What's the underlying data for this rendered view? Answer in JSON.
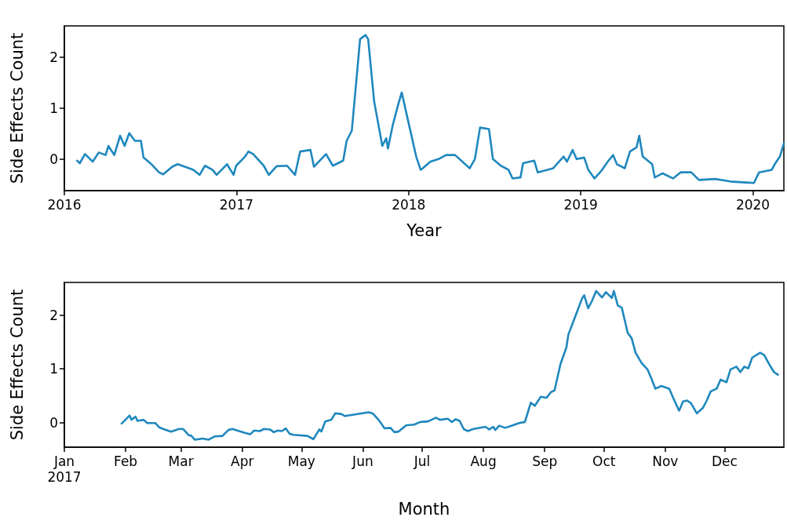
{
  "chart_data": [
    {
      "type": "line",
      "xlabel": "Year",
      "ylabel": "Side Effects Count",
      "color": "#1f88be",
      "marker": "none",
      "line_style": "solid",
      "grid": false,
      "xlim": [
        2016,
        2020.18
      ],
      "xticks": [
        2016,
        2017,
        2018,
        2019,
        2020
      ],
      "ylim": [
        -0.62,
        2.62
      ],
      "yticks": [
        0,
        1,
        2
      ],
      "x": [
        2016.074,
        2016.09,
        2016.12,
        2016.165,
        2016.2,
        2016.24,
        2016.256,
        2016.29,
        2016.324,
        2016.35,
        2016.377,
        2016.41,
        2016.445,
        2016.46,
        2016.506,
        2016.55,
        2016.574,
        2016.627,
        2016.658,
        2016.7,
        2016.75,
        2016.786,
        2016.817,
        2016.86,
        2016.885,
        2016.945,
        2016.983,
        2016.998,
        2017.05,
        2017.07,
        2017.097,
        2017.158,
        2017.188,
        2017.233,
        2017.294,
        2017.34,
        2017.37,
        2017.43,
        2017.45,
        2017.52,
        2017.56,
        2017.62,
        2017.64,
        2017.67,
        2017.695,
        2017.718,
        2017.75,
        2017.765,
        2017.8,
        2017.825,
        2017.847,
        2017.87,
        2017.88,
        2017.908,
        2017.94,
        2017.96,
        2018.006,
        2018.044,
        2018.07,
        2018.082,
        2018.127,
        2018.173,
        2018.218,
        2018.27,
        2018.355,
        2018.385,
        2018.415,
        2018.467,
        2018.49,
        2018.536,
        2018.58,
        2018.604,
        2018.65,
        2018.665,
        2018.73,
        2018.75,
        2018.84,
        2018.9,
        2018.92,
        2018.953,
        2018.976,
        2019.02,
        2019.044,
        2019.08,
        2019.12,
        2019.157,
        2019.188,
        2019.21,
        2019.256,
        2019.286,
        2019.324,
        2019.34,
        2019.36,
        2019.415,
        2019.43,
        2019.476,
        2019.536,
        2019.58,
        2019.642,
        2019.687,
        2019.78,
        2019.87,
        2019.96,
        2020.006,
        2020.036,
        2020.11,
        2020.127,
        2020.157,
        2020.18
      ],
      "values": [
        -0.03,
        -0.08,
        0.1,
        -0.05,
        0.13,
        0.08,
        0.26,
        0.08,
        0.46,
        0.26,
        0.51,
        0.36,
        0.36,
        0.03,
        -0.1,
        -0.26,
        -0.3,
        -0.15,
        -0.1,
        -0.15,
        -0.21,
        -0.31,
        -0.13,
        -0.21,
        -0.31,
        -0.1,
        -0.31,
        -0.13,
        0.05,
        0.15,
        0.1,
        -0.13,
        -0.31,
        -0.14,
        -0.13,
        -0.31,
        0.15,
        0.18,
        -0.15,
        0.1,
        -0.13,
        -0.03,
        0.36,
        0.56,
        1.49,
        2.36,
        2.44,
        2.36,
        1.13,
        0.67,
        0.26,
        0.41,
        0.21,
        0.67,
        1.08,
        1.31,
        0.62,
        0.05,
        -0.21,
        -0.18,
        -0.05,
        0,
        0.08,
        0.08,
        -0.18,
        0,
        0.62,
        0.59,
        0,
        -0.13,
        -0.21,
        -0.38,
        -0.36,
        -0.08,
        -0.03,
        -0.26,
        -0.18,
        0.05,
        -0.05,
        0.18,
        0,
        0.03,
        -0.21,
        -0.38,
        -0.23,
        -0.05,
        0.08,
        -0.1,
        -0.18,
        0.15,
        0.23,
        0.46,
        0.05,
        -0.1,
        -0.36,
        -0.28,
        -0.38,
        -0.26,
        -0.26,
        -0.41,
        -0.39,
        -0.44,
        -0.46,
        -0.47,
        -0.26,
        -0.21,
        -0.1,
        0.05,
        0.31
      ]
    },
    {
      "type": "line",
      "xlabel": "Month",
      "ylabel": "Side Effects Count",
      "color": "#1f88be",
      "marker": "none",
      "line_style": "solid",
      "grid": false,
      "xlim": [
        "2017-01-01",
        "2017-12-31"
      ],
      "xticks": [
        {
          "value": "2017-01-01",
          "label": "Jan\n2017"
        },
        {
          "value": "2017-02-01",
          "label": "Feb"
        },
        {
          "value": "2017-03-01",
          "label": "Mar"
        },
        {
          "value": "2017-04-01",
          "label": "Apr"
        },
        {
          "value": "2017-05-01",
          "label": "May"
        },
        {
          "value": "2017-06-01",
          "label": "Jun"
        },
        {
          "value": "2017-07-01",
          "label": "Jul"
        },
        {
          "value": "2017-08-01",
          "label": "Aug"
        },
        {
          "value": "2017-09-01",
          "label": "Sep"
        },
        {
          "value": "2017-10-01",
          "label": "Oct"
        },
        {
          "value": "2017-11-01",
          "label": "Nov"
        },
        {
          "value": "2017-12-01",
          "label": "Dec"
        }
      ],
      "ylim": [
        -0.46,
        2.61
      ],
      "yticks": [
        0,
        1,
        2
      ],
      "x": [
        "2017-01-30",
        "2017-02-03",
        "2017-02-04",
        "2017-02-06",
        "2017-02-07",
        "2017-02-10",
        "2017-02-12",
        "2017-02-16",
        "2017-02-18",
        "2017-02-20",
        "2017-02-24",
        "2017-02-28",
        "2017-03-02",
        "2017-03-05",
        "2017-03-06",
        "2017-03-08",
        "2017-03-12",
        "2017-03-15",
        "2017-03-18",
        "2017-03-22",
        "2017-03-25",
        "2017-03-27",
        "2017-04-02",
        "2017-04-05",
        "2017-04-07",
        "2017-04-10",
        "2017-04-12",
        "2017-04-15",
        "2017-04-17",
        "2017-04-19",
        "2017-04-21",
        "2017-04-23",
        "2017-04-25",
        "2017-04-27",
        "2017-05-04",
        "2017-05-07",
        "2017-05-10",
        "2017-05-11",
        "2017-05-13",
        "2017-05-16",
        "2017-05-18",
        "2017-05-21",
        "2017-05-23",
        "2017-06-04",
        "2017-06-06",
        "2017-06-09",
        "2017-06-12",
        "2017-06-15",
        "2017-06-17",
        "2017-06-19",
        "2017-06-23",
        "2017-06-27",
        "2017-06-30",
        "2017-07-04",
        "2017-07-08",
        "2017-07-10",
        "2017-07-14",
        "2017-07-16",
        "2017-07-18",
        "2017-07-20",
        "2017-07-22",
        "2017-07-24",
        "2017-07-27",
        "2017-08-02",
        "2017-08-04",
        "2017-08-06",
        "2017-08-07",
        "2017-08-09",
        "2017-08-12",
        "2017-08-16",
        "2017-08-19",
        "2017-08-22",
        "2017-08-25",
        "2017-08-27",
        "2017-08-30",
        "2017-09-02",
        "2017-09-04",
        "2017-09-06",
        "2017-09-09",
        "2017-09-12",
        "2017-09-13",
        "2017-09-16",
        "2017-09-20",
        "2017-09-21",
        "2017-09-23",
        "2017-09-25",
        "2017-09-27",
        "2017-09-30",
        "2017-10-02",
        "2017-10-05",
        "2017-10-06",
        "2017-10-08",
        "2017-10-10",
        "2017-10-13",
        "2017-10-15",
        "2017-10-17",
        "2017-10-20",
        "2017-10-23",
        "2017-10-25",
        "2017-10-27",
        "2017-10-30",
        "2017-11-03",
        "2017-11-05",
        "2017-11-08",
        "2017-11-10",
        "2017-11-12",
        "2017-11-14",
        "2017-11-17",
        "2017-11-20",
        "2017-11-22",
        "2017-11-24",
        "2017-11-27",
        "2017-11-29",
        "2017-12-02",
        "2017-12-04",
        "2017-12-07",
        "2017-12-09",
        "2017-12-11",
        "2017-12-13",
        "2017-12-15",
        "2017-12-19",
        "2017-12-21",
        "2017-12-24",
        "2017-12-26",
        "2017-12-28"
      ],
      "values": [
        -0.02,
        0.13,
        0.05,
        0.11,
        0.03,
        0.05,
        -0.01,
        -0.01,
        -0.09,
        -0.12,
        -0.17,
        -0.12,
        -0.12,
        -0.24,
        -0.24,
        -0.32,
        -0.3,
        -0.32,
        -0.26,
        -0.25,
        -0.14,
        -0.12,
        -0.19,
        -0.22,
        -0.15,
        -0.16,
        -0.12,
        -0.13,
        -0.18,
        -0.15,
        -0.16,
        -0.11,
        -0.21,
        -0.23,
        -0.25,
        -0.31,
        -0.13,
        -0.17,
        0.02,
        0.05,
        0.17,
        0.16,
        0.12,
        0.19,
        0.17,
        0.05,
        -0.11,
        -0.1,
        -0.18,
        -0.17,
        -0.05,
        -0.04,
        0.01,
        0.02,
        0.09,
        0.05,
        0.07,
        0.01,
        0.06,
        0.03,
        -0.12,
        -0.16,
        -0.12,
        -0.08,
        -0.13,
        -0.08,
        -0.14,
        -0.06,
        -0.1,
        -0.05,
        -0.01,
        0.01,
        0.37,
        0.31,
        0.48,
        0.46,
        0.56,
        0.6,
        1.09,
        1.4,
        1.64,
        1.93,
        2.32,
        2.37,
        2.13,
        2.27,
        2.45,
        2.33,
        2.43,
        2.32,
        2.45,
        2.18,
        2.14,
        1.67,
        1.57,
        1.3,
        1.11,
        0.99,
        0.82,
        0.63,
        0.68,
        0.63,
        0.46,
        0.22,
        0.39,
        0.41,
        0.36,
        0.17,
        0.27,
        0.41,
        0.58,
        0.63,
        0.8,
        0.75,
        0.99,
        1.04,
        0.94,
        1.04,
        1.01,
        1.21,
        1.3,
        1.26,
        1.06,
        0.94,
        0.89
      ]
    }
  ]
}
